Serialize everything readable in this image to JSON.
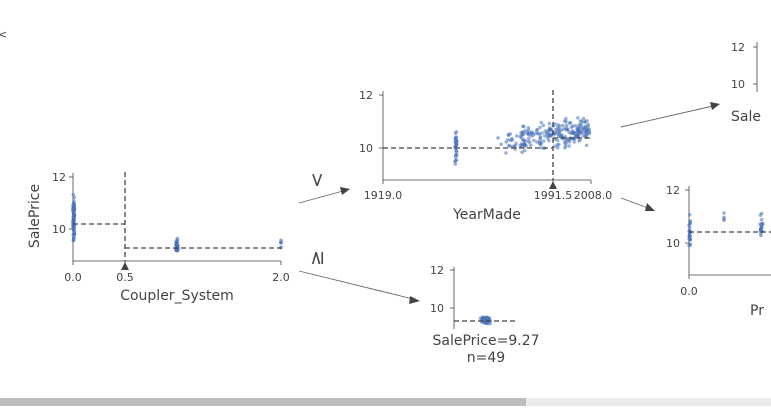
{
  "tree": {
    "target_name": "SalePrice",
    "edge_labels": {
      "left": "<",
      "right": "≥"
    },
    "colors": {
      "points": "#4a72b8",
      "lines": "#444444"
    },
    "nodes": [
      {
        "id": "root",
        "feature": "Coupler_System",
        "split": 0.5,
        "ylabel": "SalePrice",
        "x_ticks": [
          "0.0",
          "0.5",
          "2.0"
        ],
        "x_range": [
          0,
          2
        ],
        "y_ticks": [
          "12",
          "10"
        ],
        "y_range": [
          8.8,
          12.3
        ],
        "mean_left": 10.2,
        "mean_right": 9.3
      },
      {
        "id": "node-yearmade",
        "feature": "YearMade",
        "split": 1991.5,
        "x_ticks": [
          "1919.0",
          "1991.5",
          "2008.0"
        ],
        "x_range": [
          1919,
          2008
        ],
        "y_ticks": [
          "12",
          "10"
        ],
        "y_range": [
          8.8,
          12.3
        ],
        "mean_left": 10.0,
        "mean_right": 10.4
      },
      {
        "id": "leaf-right",
        "target": "SalePrice",
        "value": 9.27,
        "n": 49,
        "y_ticks": [
          "12",
          "10"
        ],
        "y_range": [
          8.8,
          12.6
        ],
        "mean": 9.27,
        "label": "SalePrice=9.27",
        "n_label": "n=49"
      },
      {
        "id": "node-top-right",
        "target_axis_label": "Sale",
        "y_ticks": [
          "12",
          "10"
        ]
      },
      {
        "id": "node-bottom-right",
        "feature_partial": "Pr",
        "x_ticks": [
          "0.0"
        ],
        "y_ticks": [
          "12",
          "10"
        ],
        "mean": 10.4
      }
    ]
  },
  "scrollbar": {
    "thumb_fraction": 0.68
  }
}
